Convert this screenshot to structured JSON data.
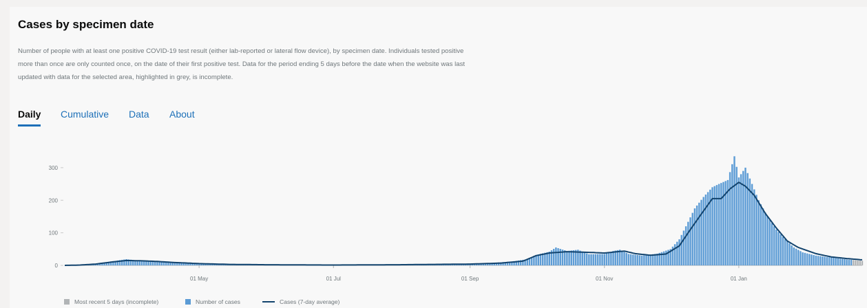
{
  "panel": {
    "title": "Cases by specimen date",
    "description": "Number of people with at least one positive COVID-19 test result (either lab-reported or lateral flow device), by specimen date. Individuals tested positive more than once are only counted once, on the date of their first positive test. Data for the period ending 5 days before the date when the website was last updated with data for the selected area, highlighted in grey, is incomplete."
  },
  "tabs": [
    {
      "label": "Daily",
      "active": true
    },
    {
      "label": "Cumulative",
      "active": false
    },
    {
      "label": "Data",
      "active": false
    },
    {
      "label": "About",
      "active": false
    }
  ],
  "legend": {
    "incomplete": "Most recent 5 days (incomplete)",
    "cases": "Number of cases",
    "average": "Cases (7-day average)"
  },
  "colors": {
    "bar": "#5b9bd5",
    "incomplete": "#b1b4b6",
    "line": "#12436d",
    "tab_active_underline": "#1d70b8",
    "axis_text": "#6f777b"
  },
  "chart_data": {
    "type": "bar",
    "x_start": "2020-03-01",
    "x_end": "2021-02-26",
    "ylim": [
      0,
      380
    ],
    "yticks": [
      0,
      100,
      200,
      300
    ],
    "xticks": [
      {
        "date": "2020-05-01",
        "label": "01 May"
      },
      {
        "date": "2020-07-01",
        "label": "01 Jul"
      },
      {
        "date": "2020-09-01",
        "label": "01 Sep"
      },
      {
        "date": "2020-11-01",
        "label": "01 Nov"
      },
      {
        "date": "2021-01-01",
        "label": "01 Jan"
      }
    ],
    "incomplete_days": 5,
    "series": [
      {
        "name": "Number of cases",
        "kind": "bar",
        "points": [
          [
            "2020-03-01",
            0
          ],
          [
            "2020-03-08",
            1
          ],
          [
            "2020-03-15",
            4
          ],
          [
            "2020-03-22",
            12
          ],
          [
            "2020-03-29",
            19
          ],
          [
            "2020-04-02",
            16
          ],
          [
            "2020-04-05",
            15
          ],
          [
            "2020-04-12",
            13
          ],
          [
            "2020-04-19",
            11
          ],
          [
            "2020-04-26",
            7
          ],
          [
            "2020-05-03",
            5
          ],
          [
            "2020-05-15",
            4
          ],
          [
            "2020-05-31",
            2
          ],
          [
            "2020-06-30",
            1
          ],
          [
            "2020-07-31",
            2
          ],
          [
            "2020-08-15",
            3
          ],
          [
            "2020-09-01",
            4
          ],
          [
            "2020-09-10",
            7
          ],
          [
            "2020-09-20",
            12
          ],
          [
            "2020-09-28",
            20
          ],
          [
            "2020-10-01",
            32
          ],
          [
            "2020-10-07",
            42
          ],
          [
            "2020-10-10",
            55
          ],
          [
            "2020-10-15",
            44
          ],
          [
            "2020-10-20",
            48
          ],
          [
            "2020-10-25",
            34
          ],
          [
            "2020-11-01",
            35
          ],
          [
            "2020-11-05",
            44
          ],
          [
            "2020-11-08",
            48
          ],
          [
            "2020-11-12",
            35
          ],
          [
            "2020-11-18",
            30
          ],
          [
            "2020-11-25",
            36
          ],
          [
            "2020-12-01",
            50
          ],
          [
            "2020-12-05",
            80
          ],
          [
            "2020-12-08",
            120
          ],
          [
            "2020-12-12",
            175
          ],
          [
            "2020-12-16",
            210
          ],
          [
            "2020-12-20",
            240
          ],
          [
            "2020-12-23",
            250
          ],
          [
            "2020-12-27",
            262
          ],
          [
            "2020-12-30",
            335
          ],
          [
            "2021-01-01",
            270
          ],
          [
            "2021-01-04",
            300
          ],
          [
            "2021-01-07",
            250
          ],
          [
            "2021-01-10",
            200
          ],
          [
            "2021-01-14",
            150
          ],
          [
            "2021-01-18",
            110
          ],
          [
            "2021-01-22",
            80
          ],
          [
            "2021-01-26",
            55
          ],
          [
            "2021-01-30",
            40
          ],
          [
            "2021-02-05",
            30
          ],
          [
            "2021-02-12",
            24
          ],
          [
            "2021-02-19",
            18
          ],
          [
            "2021-02-26",
            14
          ]
        ]
      },
      {
        "name": "Cases (7-day average)",
        "kind": "line",
        "points": [
          [
            "2020-03-01",
            0
          ],
          [
            "2020-03-08",
            1
          ],
          [
            "2020-03-15",
            4
          ],
          [
            "2020-03-22",
            10
          ],
          [
            "2020-03-29",
            15
          ],
          [
            "2020-04-05",
            14
          ],
          [
            "2020-04-12",
            12
          ],
          [
            "2020-04-19",
            9
          ],
          [
            "2020-04-26",
            7
          ],
          [
            "2020-05-03",
            5
          ],
          [
            "2020-05-15",
            3
          ],
          [
            "2020-05-31",
            2
          ],
          [
            "2020-06-30",
            1
          ],
          [
            "2020-07-31",
            2
          ],
          [
            "2020-08-15",
            3
          ],
          [
            "2020-09-01",
            4
          ],
          [
            "2020-09-15",
            7
          ],
          [
            "2020-09-25",
            13
          ],
          [
            "2020-10-01",
            30
          ],
          [
            "2020-10-07",
            38
          ],
          [
            "2020-10-15",
            42
          ],
          [
            "2020-10-25",
            40
          ],
          [
            "2020-11-01",
            38
          ],
          [
            "2020-11-10",
            44
          ],
          [
            "2020-11-15",
            36
          ],
          [
            "2020-11-22",
            31
          ],
          [
            "2020-11-29",
            35
          ],
          [
            "2020-12-05",
            60
          ],
          [
            "2020-12-10",
            110
          ],
          [
            "2020-12-15",
            158
          ],
          [
            "2020-12-20",
            205
          ],
          [
            "2020-12-24",
            205
          ],
          [
            "2020-12-28",
            235
          ],
          [
            "2021-01-01",
            255
          ],
          [
            "2021-01-04",
            243
          ],
          [
            "2021-01-08",
            215
          ],
          [
            "2021-01-13",
            160
          ],
          [
            "2021-01-18",
            115
          ],
          [
            "2021-01-23",
            75
          ],
          [
            "2021-01-28",
            55
          ],
          [
            "2021-02-05",
            36
          ],
          [
            "2021-02-12",
            26
          ],
          [
            "2021-02-19",
            21
          ],
          [
            "2021-02-26",
            17
          ]
        ]
      }
    ]
  }
}
